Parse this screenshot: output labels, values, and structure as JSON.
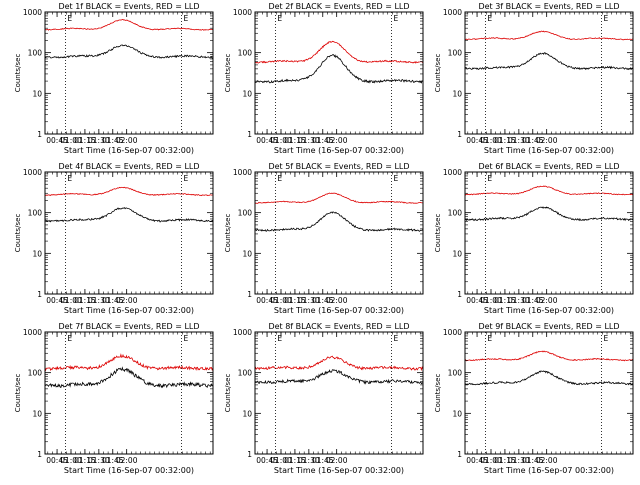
{
  "chart_data": [
    {
      "type": "line",
      "title": "Det 1f BLACK = Events, RED = LLD",
      "xlabel": "Start Time (16-Sep-07 00:32:00)",
      "ylabel": "Counts/sec",
      "yscale": "log",
      "ylim": [
        1,
        1000
      ],
      "xlim": [
        32,
        213
      ],
      "xticks": [
        "00:45",
        "01:00",
        "01:15",
        "01:30",
        "01:45",
        "02:00"
      ],
      "yticks": [
        "1",
        "10",
        "100",
        "1000"
      ],
      "vlines": [
        {
          "x": 54,
          "label": "E"
        },
        {
          "x": 179,
          "label": "E"
        }
      ],
      "series": [
        {
          "color": "#000000",
          "base": 80,
          "peak": 150,
          "noise": 0.05
        },
        {
          "color": "#dd0000",
          "base": 380,
          "peak": 620,
          "noise": 0.025
        }
      ]
    },
    {
      "type": "line",
      "title": "Det 2f BLACK = Events, RED = LLD",
      "xlabel": "Start Time (16-Sep-07 00:32:00)",
      "ylabel": "Counts/sec",
      "yscale": "log",
      "ylim": [
        1,
        1000
      ],
      "xlim": [
        32,
        213
      ],
      "xticks": [
        "00:45",
        "01:00",
        "01:15",
        "01:30",
        "01:45",
        "02:00"
      ],
      "yticks": [
        "1",
        "10",
        "100",
        "1000"
      ],
      "vlines": [
        {
          "x": 54,
          "label": "E"
        },
        {
          "x": 179,
          "label": "E"
        }
      ],
      "series": [
        {
          "color": "#000000",
          "base": 20,
          "peak": 85,
          "noise": 0.06
        },
        {
          "color": "#dd0000",
          "base": 60,
          "peak": 180,
          "noise": 0.04
        }
      ]
    },
    {
      "type": "line",
      "title": "Det 3f BLACK = Events, RED = LLD",
      "xlabel": "Start Time (16-Sep-07 00:32:00)",
      "ylabel": "Counts/sec",
      "yscale": "log",
      "ylim": [
        1,
        1000
      ],
      "xlim": [
        32,
        213
      ],
      "xticks": [
        "00:45",
        "01:00",
        "01:15",
        "01:30",
        "01:45",
        "02:00"
      ],
      "yticks": [
        "1",
        "10",
        "100",
        "1000"
      ],
      "vlines": [
        {
          "x": 54,
          "label": "E"
        },
        {
          "x": 179,
          "label": "E"
        }
      ],
      "series": [
        {
          "color": "#000000",
          "base": 42,
          "peak": 95,
          "noise": 0.05
        },
        {
          "color": "#dd0000",
          "base": 220,
          "peak": 320,
          "noise": 0.025
        }
      ]
    },
    {
      "type": "line",
      "title": "Det 4f BLACK = Events, RED = LLD",
      "xlabel": "Start Time (16-Sep-07 00:32:00)",
      "ylabel": "Counts/sec",
      "yscale": "log",
      "ylim": [
        1,
        1000
      ],
      "xlim": [
        32,
        213
      ],
      "xticks": [
        "00:45",
        "01:00",
        "01:15",
        "01:30",
        "01:45",
        "02:00"
      ],
      "yticks": [
        "1",
        "10",
        "100",
        "1000"
      ],
      "vlines": [
        {
          "x": 54,
          "label": "E"
        },
        {
          "x": 179,
          "label": "E"
        }
      ],
      "series": [
        {
          "color": "#000000",
          "base": 65,
          "peak": 130,
          "noise": 0.05
        },
        {
          "color": "#dd0000",
          "base": 280,
          "peak": 400,
          "noise": 0.025
        }
      ]
    },
    {
      "type": "line",
      "title": "Det 5f BLACK = Events, RED = LLD",
      "xlabel": "Start Time (16-Sep-07 00:32:00)",
      "ylabel": "Counts/sec",
      "yscale": "log",
      "ylim": [
        1,
        1000
      ],
      "xlim": [
        32,
        213
      ],
      "xticks": [
        "00:45",
        "01:00",
        "01:15",
        "01:30",
        "01:45",
        "02:00"
      ],
      "yticks": [
        "1",
        "10",
        "100",
        "1000"
      ],
      "vlines": [
        {
          "x": 54,
          "label": "E"
        },
        {
          "x": 179,
          "label": "E"
        }
      ],
      "series": [
        {
          "color": "#000000",
          "base": 38,
          "peak": 100,
          "noise": 0.05
        },
        {
          "color": "#dd0000",
          "base": 180,
          "peak": 290,
          "noise": 0.025
        }
      ]
    },
    {
      "type": "line",
      "title": "Det 6f BLACK = Events, RED = LLD",
      "xlabel": "Start Time (16-Sep-07 00:32:00)",
      "ylabel": "Counts/sec",
      "yscale": "log",
      "ylim": [
        1,
        1000
      ],
      "xlim": [
        32,
        213
      ],
      "xticks": [
        "00:45",
        "01:00",
        "01:15",
        "01:30",
        "01:45",
        "02:00"
      ],
      "yticks": [
        "1",
        "10",
        "100",
        "1000"
      ],
      "vlines": [
        {
          "x": 54,
          "label": "E"
        },
        {
          "x": 179,
          "label": "E"
        }
      ],
      "series": [
        {
          "color": "#000000",
          "base": 70,
          "peak": 135,
          "noise": 0.05
        },
        {
          "color": "#dd0000",
          "base": 290,
          "peak": 430,
          "noise": 0.025
        }
      ]
    },
    {
      "type": "line",
      "title": "Det 7f BLACK = Events, RED = LLD",
      "xlabel": "Start Time (16-Sep-07 00:32:00)",
      "ylabel": "Counts/sec",
      "yscale": "log",
      "ylim": [
        1,
        1000
      ],
      "xlim": [
        32,
        213
      ],
      "xticks": [
        "00:45",
        "01:00",
        "01:15",
        "01:30",
        "01:45",
        "02:00"
      ],
      "yticks": [
        "1",
        "10",
        "100",
        "1000"
      ],
      "vlines": [
        {
          "x": 54,
          "label": "E"
        },
        {
          "x": 179,
          "label": "E"
        }
      ],
      "series": [
        {
          "color": "#000000",
          "base": 50,
          "peak": 120,
          "noise": 0.1
        },
        {
          "color": "#dd0000",
          "base": 130,
          "peak": 250,
          "noise": 0.08
        }
      ]
    },
    {
      "type": "line",
      "title": "Det 8f BLACK = Events, RED = LLD",
      "xlabel": "Start Time (16-Sep-07 00:32:00)",
      "ylabel": "Counts/sec",
      "yscale": "log",
      "ylim": [
        1,
        1000
      ],
      "xlim": [
        32,
        213
      ],
      "xticks": [
        "00:45",
        "01:00",
        "01:15",
        "01:30",
        "01:45",
        "02:00"
      ],
      "yticks": [
        "1",
        "10",
        "100",
        "1000"
      ],
      "vlines": [
        {
          "x": 54,
          "label": "E"
        },
        {
          "x": 179,
          "label": "E"
        }
      ],
      "series": [
        {
          "color": "#000000",
          "base": 60,
          "peak": 110,
          "noise": 0.08
        },
        {
          "color": "#dd0000",
          "base": 130,
          "peak": 230,
          "noise": 0.07
        }
      ]
    },
    {
      "type": "line",
      "title": "Det 9f BLACK = Events, RED = LLD",
      "xlabel": "Start Time (16-Sep-07 00:32:00)",
      "ylabel": "Counts/sec",
      "yscale": "log",
      "ylim": [
        1,
        1000
      ],
      "xlim": [
        32,
        213
      ],
      "xticks": [
        "00:45",
        "01:00",
        "01:15",
        "01:30",
        "01:45",
        "02:00"
      ],
      "yticks": [
        "1",
        "10",
        "100",
        "1000"
      ],
      "vlines": [
        {
          "x": 54,
          "label": "E"
        },
        {
          "x": 179,
          "label": "E"
        }
      ],
      "series": [
        {
          "color": "#000000",
          "base": 55,
          "peak": 105,
          "noise": 0.05
        },
        {
          "color": "#dd0000",
          "base": 210,
          "peak": 320,
          "noise": 0.03
        }
      ]
    }
  ]
}
